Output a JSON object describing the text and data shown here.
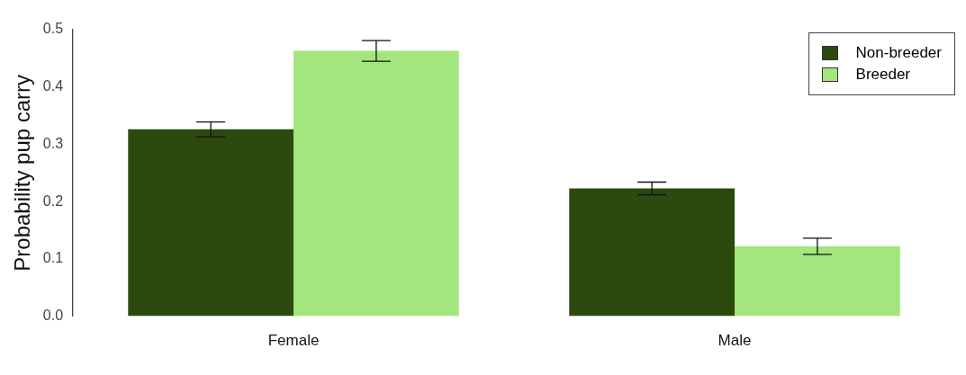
{
  "chart_data": {
    "type": "bar",
    "ylabel": "Probability pup carry",
    "categories": [
      "Female",
      "Male"
    ],
    "series": [
      {
        "name": "Non-breeder",
        "color": "#2d4a0e",
        "values": [
          0.326,
          0.223
        ],
        "errors": [
          0.013,
          0.011
        ]
      },
      {
        "name": "Breeder",
        "color": "#a3e67d",
        "values": [
          0.463,
          0.122
        ],
        "errors": [
          0.018,
          0.014
        ]
      }
    ],
    "ylim": [
      0,
      0.5
    ],
    "yticks": [
      {
        "value": 0,
        "label": "0.0"
      },
      {
        "value": 0.1,
        "label": "0.1"
      },
      {
        "value": 0.2,
        "label": "0.2"
      },
      {
        "value": 0.3,
        "label": "0.3"
      },
      {
        "value": 0.4,
        "label": "0.4"
      },
      {
        "value": 0.5,
        "label": "0.5"
      }
    ],
    "grid": false,
    "legend": "top right"
  }
}
